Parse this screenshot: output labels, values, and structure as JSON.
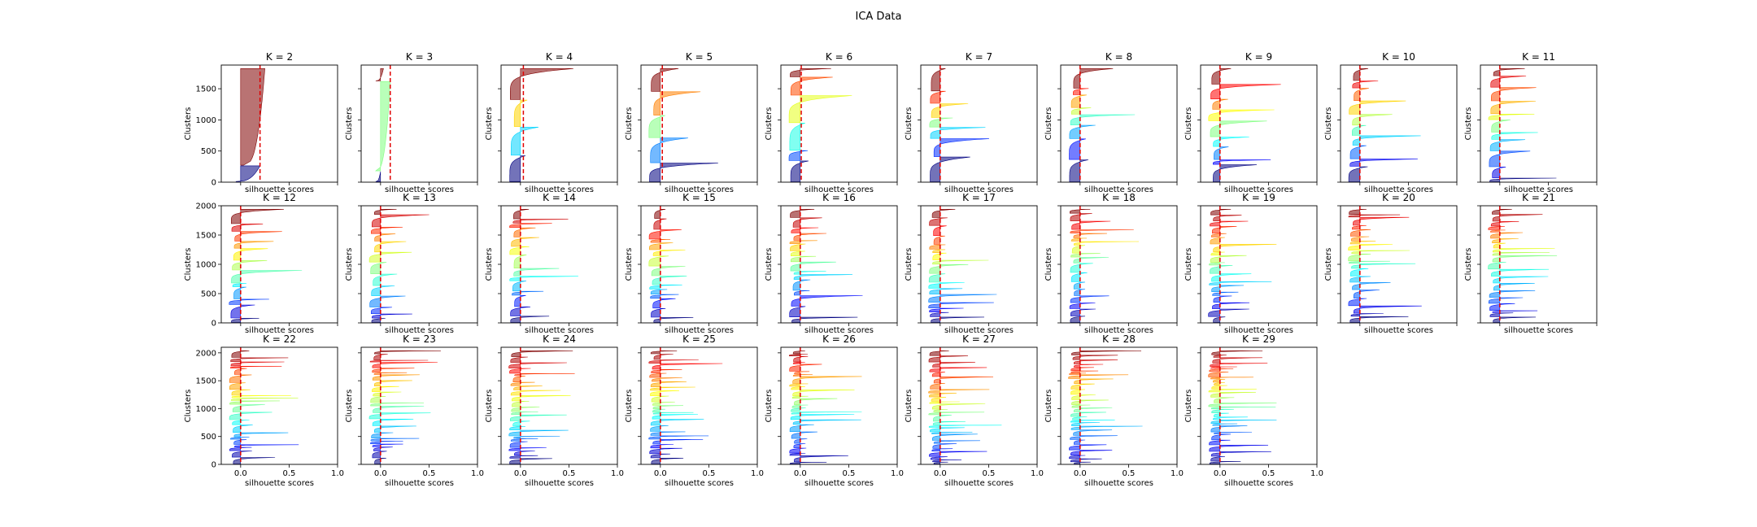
{
  "figure": {
    "suptitle": "ICA Data"
  },
  "chart_data": {
    "type": "silhouette-grid",
    "title": "ICA Data",
    "xlabel": "silhouette scores",
    "ylabel": "Clusters",
    "xlim": [
      -0.2,
      1.0
    ],
    "xticks": [
      0.0,
      0.5,
      1.0
    ],
    "xtick_labels": [
      "0.0",
      "0.5",
      "1.0"
    ],
    "grid": false,
    "colormap": "jet",
    "avg_line_color": "#e00000",
    "panels": [
      {
        "title": "K = 2",
        "k": 2,
        "avg": 0.2,
        "ylim": [
          0,
          1880
        ],
        "yticks": [
          0,
          500,
          1000,
          1500
        ]
      },
      {
        "title": "K = 3",
        "k": 3,
        "avg": 0.1,
        "ylim": [
          0,
          1880
        ],
        "yticks": [
          0,
          500,
          1000,
          1500
        ]
      },
      {
        "title": "K = 4",
        "k": 4,
        "avg": 0.03,
        "ylim": [
          0,
          1880
        ],
        "yticks": [
          0,
          500,
          1000,
          1500
        ]
      },
      {
        "title": "K = 5",
        "k": 5,
        "avg": 0.02,
        "ylim": [
          0,
          1880
        ],
        "yticks": [
          0,
          500,
          1000,
          1500
        ]
      },
      {
        "title": "K = 6",
        "k": 6,
        "avg": 0.01,
        "ylim": [
          0,
          1880
        ],
        "yticks": [
          0,
          500,
          1000,
          1500
        ]
      },
      {
        "title": "K = 7",
        "k": 7,
        "avg": 0.0,
        "ylim": [
          0,
          1880
        ],
        "yticks": [
          0,
          500,
          1000,
          1500
        ]
      },
      {
        "title": "K = 8",
        "k": 8,
        "avg": 0.0,
        "ylim": [
          0,
          1880
        ],
        "yticks": [
          0,
          500,
          1000,
          1500
        ]
      },
      {
        "title": "K = 9",
        "k": 9,
        "avg": 0.0,
        "ylim": [
          0,
          1880
        ],
        "yticks": [
          0,
          500,
          1000,
          1500
        ]
      },
      {
        "title": "K = 10",
        "k": 10,
        "avg": 0.0,
        "ylim": [
          0,
          1880
        ],
        "yticks": [
          0,
          500,
          1000,
          1500
        ]
      },
      {
        "title": "K = 11",
        "k": 11,
        "avg": 0.0,
        "ylim": [
          0,
          1880
        ],
        "yticks": [
          0,
          500,
          1000,
          1500
        ]
      },
      {
        "title": "K = 12",
        "k": 12,
        "avg": 0.0,
        "ylim": [
          0,
          2000
        ],
        "yticks": [
          0,
          500,
          1000,
          1500,
          2000
        ]
      },
      {
        "title": "K = 13",
        "k": 13,
        "avg": 0.0,
        "ylim": [
          0,
          2000
        ],
        "yticks": [
          0,
          500,
          1000,
          1500,
          2000
        ]
      },
      {
        "title": "K = 14",
        "k": 14,
        "avg": 0.0,
        "ylim": [
          0,
          2000
        ],
        "yticks": [
          0,
          500,
          1000,
          1500,
          2000
        ]
      },
      {
        "title": "K = 15",
        "k": 15,
        "avg": 0.0,
        "ylim": [
          0,
          2000
        ],
        "yticks": [
          0,
          500,
          1000,
          1500,
          2000
        ]
      },
      {
        "title": "K = 16",
        "k": 16,
        "avg": 0.0,
        "ylim": [
          0,
          2000
        ],
        "yticks": [
          0,
          500,
          1000,
          1500,
          2000
        ]
      },
      {
        "title": "K = 17",
        "k": 17,
        "avg": 0.0,
        "ylim": [
          0,
          2000
        ],
        "yticks": [
          0,
          500,
          1000,
          1500,
          2000
        ]
      },
      {
        "title": "K = 18",
        "k": 18,
        "avg": 0.0,
        "ylim": [
          0,
          2000
        ],
        "yticks": [
          0,
          500,
          1000,
          1500,
          2000
        ]
      },
      {
        "title": "K = 19",
        "k": 19,
        "avg": 0.0,
        "ylim": [
          0,
          2000
        ],
        "yticks": [
          0,
          500,
          1000,
          1500,
          2000
        ]
      },
      {
        "title": "K = 20",
        "k": 20,
        "avg": 0.0,
        "ylim": [
          0,
          2000
        ],
        "yticks": [
          0,
          500,
          1000,
          1500,
          2000
        ]
      },
      {
        "title": "K = 21",
        "k": 21,
        "avg": 0.0,
        "ylim": [
          0,
          2000
        ],
        "yticks": [
          0,
          500,
          1000,
          1500,
          2000
        ]
      },
      {
        "title": "K = 22",
        "k": 22,
        "avg": 0.0,
        "ylim": [
          0,
          2100
        ],
        "yticks": [
          0,
          500,
          1000,
          1500,
          2000
        ]
      },
      {
        "title": "K = 23",
        "k": 23,
        "avg": 0.0,
        "ylim": [
          0,
          2100
        ],
        "yticks": [
          0,
          500,
          1000,
          1500,
          2000
        ]
      },
      {
        "title": "K = 24",
        "k": 24,
        "avg": 0.0,
        "ylim": [
          0,
          2100
        ],
        "yticks": [
          0,
          500,
          1000,
          1500,
          2000
        ]
      },
      {
        "title": "K = 25",
        "k": 25,
        "avg": 0.0,
        "ylim": [
          0,
          2100
        ],
        "yticks": [
          0,
          500,
          1000,
          1500,
          2000
        ]
      },
      {
        "title": "K = 26",
        "k": 26,
        "avg": 0.0,
        "ylim": [
          0,
          2100
        ],
        "yticks": [
          0,
          500,
          1000,
          1500,
          2000
        ]
      },
      {
        "title": "K = 27",
        "k": 27,
        "avg": 0.0,
        "ylim": [
          0,
          2100
        ],
        "yticks": [
          0,
          500,
          1000,
          1500,
          2000
        ]
      },
      {
        "title": "K = 28",
        "k": 28,
        "avg": 0.0,
        "ylim": [
          0,
          2100
        ],
        "yticks": [
          0,
          500,
          1000,
          1500,
          2000
        ]
      },
      {
        "title": "K = 29",
        "k": 29,
        "avg": 0.0,
        "ylim": [
          0,
          2100
        ],
        "yticks": [
          0,
          500,
          1000,
          1500,
          2000
        ]
      }
    ]
  }
}
